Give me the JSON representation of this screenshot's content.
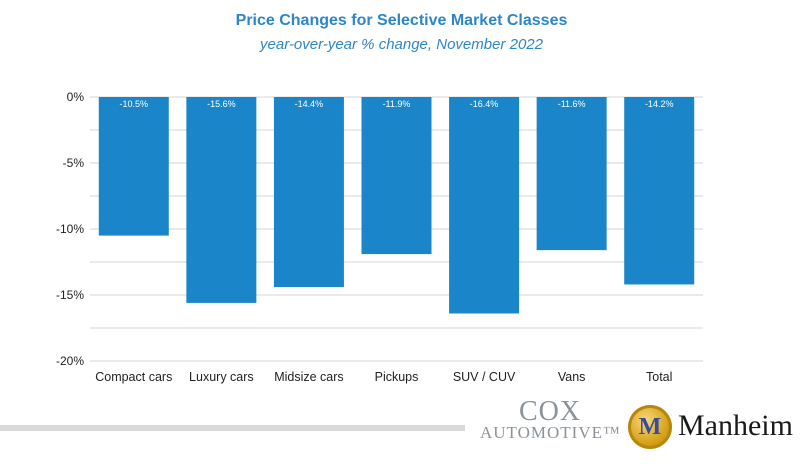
{
  "chart_data": {
    "type": "bar",
    "title": "Price Changes for Selective Market Classes",
    "subtitle": "year-over-year % change, November 2022",
    "categories": [
      "Compact cars",
      "Luxury cars",
      "Midsize cars",
      "Pickups",
      "SUV / CUV",
      "Vans",
      "Total"
    ],
    "values": [
      -10.5,
      -15.6,
      -14.4,
      -11.9,
      -16.4,
      -11.6,
      -14.2
    ],
    "data_labels": [
      "-10.5%",
      "-15.6%",
      "-14.4%",
      "-11.9%",
      "-16.4%",
      "-11.6%",
      "-14.2%"
    ],
    "yticks": [
      0,
      -5,
      -10,
      -15,
      -20
    ],
    "ytick_labels": [
      "0%",
      "-5%",
      "-10%",
      "-15%",
      "-20%"
    ],
    "ylim": [
      -20,
      0
    ],
    "grid": true,
    "bar_color": "#1a85c8",
    "legend": "none"
  },
  "footer": {
    "cox_line1": "COX",
    "cox_line2": "AUTOMOTIVE™",
    "manheim_mark": "M",
    "manheim_name": "Manheim"
  }
}
